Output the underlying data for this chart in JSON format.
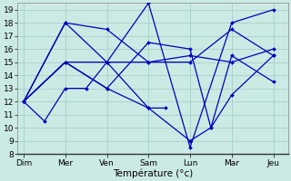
{
  "background_color": "#cceae4",
  "grid_color": "#aad4cc",
  "line_color": "#0000bb",
  "ylim": [
    8,
    19.5
  ],
  "xlabel": "Température (°c)",
  "day_labels": [
    "Dim",
    "Mer",
    "Ven",
    "Sam",
    "Lun",
    "Mar",
    "Jeu"
  ],
  "day_positions": [
    0,
    1,
    2,
    3,
    4,
    5,
    6
  ],
  "series": [
    {
      "x": [
        0,
        1,
        2,
        3,
        4,
        5,
        6
      ],
      "y": [
        12,
        18,
        15,
        19.5,
        8.5,
        18,
        19
      ]
    },
    {
      "x": [
        0,
        1,
        2,
        3,
        4,
        5,
        6
      ],
      "y": [
        12,
        18,
        17.5,
        15,
        15,
        17.5,
        15.5
      ]
    },
    {
      "x": [
        0,
        0.5,
        1,
        1.5,
        2,
        3,
        3.4
      ],
      "y": [
        12,
        10.5,
        13,
        13,
        15,
        11.5,
        11.5
      ]
    },
    {
      "x": [
        0,
        1,
        2,
        3,
        4,
        5,
        6
      ],
      "y": [
        12,
        15,
        15,
        15,
        15.5,
        15,
        16
      ]
    },
    {
      "x": [
        0,
        1,
        2,
        3,
        4,
        4.5,
        5,
        6
      ],
      "y": [
        12,
        15,
        13,
        16.5,
        16,
        10,
        15.5,
        13.5
      ]
    },
    {
      "x": [
        0,
        1,
        2,
        3,
        4,
        4.5,
        5,
        6
      ],
      "y": [
        12,
        15,
        13,
        11.5,
        9,
        10,
        12.5,
        15.5
      ]
    }
  ]
}
